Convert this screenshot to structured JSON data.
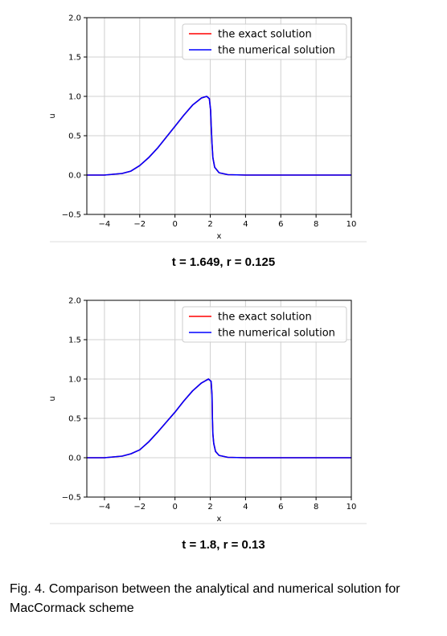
{
  "chart_data": [
    {
      "type": "line",
      "xlabel": "x",
      "ylabel": "u",
      "xlim": [
        -5,
        10
      ],
      "ylim": [
        -0.5,
        2.0
      ],
      "xticks": [
        -4,
        -2,
        0,
        2,
        4,
        6,
        8,
        10
      ],
      "yticks": [
        -0.5,
        0.0,
        0.5,
        1.0,
        1.5,
        2.0
      ],
      "grid": true,
      "legend_position": "top-right",
      "series": [
        {
          "name": "the exact solution",
          "color": "#ff0000",
          "x": [
            -5,
            -4,
            -3,
            -2.5,
            -2,
            -1.5,
            -1,
            -0.5,
            0,
            0.5,
            1,
            1.5,
            1.8,
            1.95,
            2.02,
            2.05,
            2.1,
            2.15,
            2.25,
            2.5,
            3,
            4,
            6,
            10
          ],
          "y": [
            0,
            0,
            0.02,
            0.05,
            0.12,
            0.22,
            0.34,
            0.48,
            0.62,
            0.76,
            0.89,
            0.98,
            1.0,
            0.97,
            0.82,
            0.65,
            0.4,
            0.22,
            0.1,
            0.03,
            0.005,
            0,
            0,
            0
          ]
        },
        {
          "name": "the numerical solution",
          "color": "#0000ff",
          "x": [
            -5,
            -4,
            -3,
            -2.5,
            -2,
            -1.5,
            -1,
            -0.5,
            0,
            0.5,
            1,
            1.5,
            1.8,
            1.95,
            2.02,
            2.05,
            2.1,
            2.15,
            2.25,
            2.5,
            3,
            4,
            6,
            10
          ],
          "y": [
            0,
            0,
            0.02,
            0.05,
            0.12,
            0.22,
            0.34,
            0.48,
            0.62,
            0.76,
            0.89,
            0.98,
            1.0,
            0.97,
            0.82,
            0.65,
            0.4,
            0.22,
            0.1,
            0.03,
            0.005,
            0,
            0,
            0
          ]
        }
      ]
    },
    {
      "type": "line",
      "xlabel": "x",
      "ylabel": "u",
      "xlim": [
        -5,
        10
      ],
      "ylim": [
        -0.5,
        2.0
      ],
      "xticks": [
        -4,
        -2,
        0,
        2,
        4,
        6,
        8,
        10
      ],
      "yticks": [
        -0.5,
        0.0,
        0.5,
        1.0,
        1.5,
        2.0
      ],
      "grid": true,
      "legend_position": "top-right",
      "series": [
        {
          "name": "the exact solution",
          "color": "#ff0000",
          "x": [
            -5,
            -4,
            -3,
            -2.5,
            -2,
            -1.5,
            -1,
            -0.5,
            0,
            0.5,
            1,
            1.5,
            1.9,
            2.05,
            2.1,
            2.12,
            2.15,
            2.2,
            2.3,
            2.5,
            3,
            4,
            6,
            10
          ],
          "y": [
            0,
            0,
            0.02,
            0.05,
            0.1,
            0.2,
            0.32,
            0.45,
            0.58,
            0.72,
            0.85,
            0.95,
            1.0,
            0.97,
            0.8,
            0.5,
            0.3,
            0.18,
            0.08,
            0.03,
            0.005,
            0,
            0,
            0
          ]
        },
        {
          "name": "the numerical solution",
          "color": "#0000ff",
          "x": [
            -5,
            -4,
            -3,
            -2.5,
            -2,
            -1.5,
            -1,
            -0.5,
            0,
            0.5,
            1,
            1.5,
            1.9,
            2.05,
            2.1,
            2.12,
            2.15,
            2.2,
            2.3,
            2.5,
            3,
            4,
            6,
            10
          ],
          "y": [
            0,
            0,
            0.02,
            0.05,
            0.1,
            0.2,
            0.32,
            0.45,
            0.58,
            0.72,
            0.85,
            0.95,
            1.0,
            0.97,
            0.8,
            0.5,
            0.3,
            0.18,
            0.08,
            0.03,
            0.005,
            0,
            0,
            0
          ]
        }
      ]
    }
  ],
  "subcaptions": [
    "t = 1.649, r = 0.125",
    "t = 1.8, r = 0.13"
  ],
  "caption": "Fig. 4.   Comparison between the analytical and numerical solution for MacCormack scheme"
}
